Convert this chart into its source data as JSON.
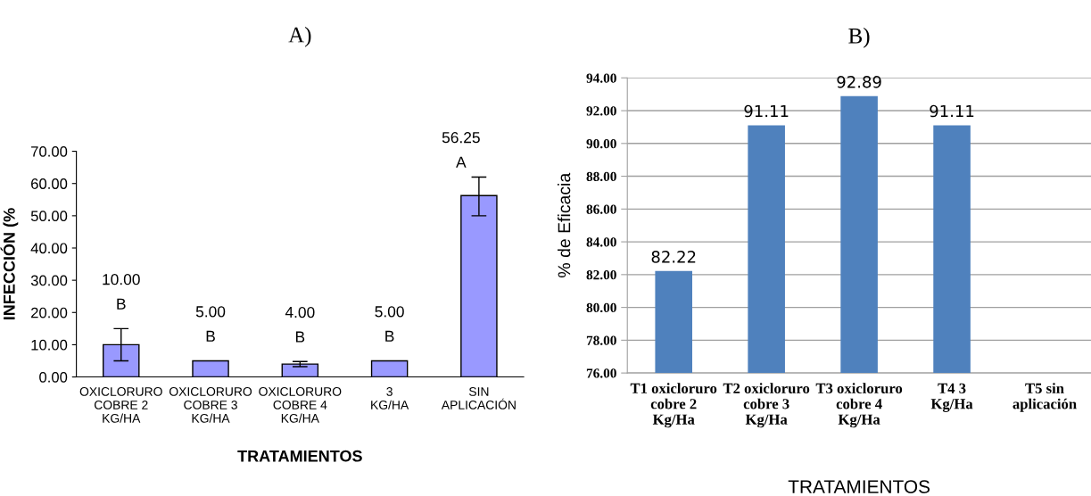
{
  "chart_data": [
    {
      "type": "bar",
      "title": "A)",
      "xlabel": "TRATAMIENTOS",
      "ylabel": "INFECCIÓN (%",
      "categories": [
        "OXICLORURO\nCOBRE 2\nKG/HA",
        "OXICLORURO\nCOBRE 3\nKG/HA",
        "OXICLORURO\nCOBRE 4\nKG/HA",
        "3\nKG/HA",
        "SIN\nAPLICACIÓN"
      ],
      "values": [
        10,
        5,
        4,
        5,
        56.25
      ],
      "color": "#9999ff",
      "errors": [
        [
          5,
          15
        ],
        null,
        [
          3.2,
          4.8
        ],
        null,
        [
          50,
          62
        ]
      ],
      "value_labels": [
        "10.00\nB",
        "5.00\nB",
        "4.00\nB",
        "5.00\nB",
        "56.25\nA"
      ],
      "ylim": [
        0,
        70
      ],
      "yticks": [
        {
          "value": 0,
          "label": "0.00"
        },
        {
          "value": 10,
          "label": "10.00"
        },
        {
          "value": 20,
          "label": "20.00"
        },
        {
          "value": 30,
          "label": "30.00"
        },
        {
          "value": 40,
          "label": "40.00"
        },
        {
          "value": 50,
          "label": "50.00"
        },
        {
          "value": 60,
          "label": "60.00"
        },
        {
          "value": 70,
          "label": "70.00"
        }
      ],
      "grid": false
    },
    {
      "type": "bar",
      "title": "B)",
      "xlabel": "TRATAMIENTOS",
      "ylabel": "% de Eficacia",
      "categories": [
        "T1 oxicloruro\ncobre 2\nKg/Ha",
        "T2 oxicloruro\ncobre 3\nKg/Ha",
        "T3 oxicloruro\ncobre 4\nKg/Ha",
        "T4 3\nKg/Ha",
        "T5 sin\naplicación"
      ],
      "values": [
        82.22,
        91.11,
        92.89,
        91.11,
        null
      ],
      "color": "#4f81bd",
      "data_labels": true,
      "ylim": [
        76,
        94
      ],
      "yticks": [
        {
          "value": 76,
          "label": "76.00"
        },
        {
          "value": 78,
          "label": "78.00"
        },
        {
          "value": 80,
          "label": "80.00"
        },
        {
          "value": 82,
          "label": "82.00"
        },
        {
          "value": 84,
          "label": "84.00"
        },
        {
          "value": 86,
          "label": "86.00"
        },
        {
          "value": 88,
          "label": "88.00"
        },
        {
          "value": 90,
          "label": "90.00"
        },
        {
          "value": 92,
          "label": "92.00"
        },
        {
          "value": 94,
          "label": "94.00"
        }
      ],
      "grid": "y"
    }
  ]
}
